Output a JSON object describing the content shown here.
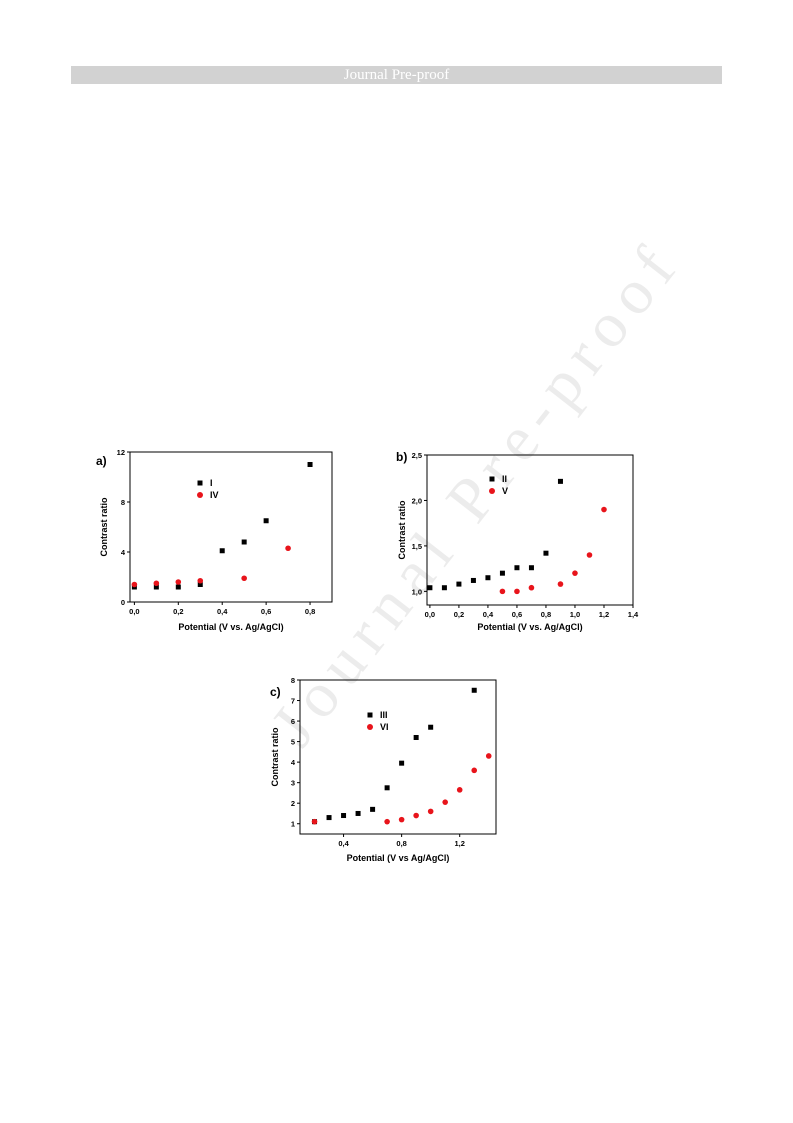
{
  "header": {
    "title": "Journal Pre-proof"
  },
  "watermark": {
    "text": "Journal Pre-proof"
  },
  "chart_data": [
    {
      "type": "scatter",
      "panel_label": "a)",
      "xlabel": "Potential (V vs. Ag/AgCl)",
      "ylabel": "Contrast ratio",
      "xlim": [
        -0.02,
        0.9
      ],
      "ylim": [
        0,
        12
      ],
      "xticks": [
        0.0,
        0.2,
        0.4,
        0.6,
        0.8
      ],
      "xtick_labels": [
        "0,0",
        "0,2",
        "0,4",
        "0,6",
        "0,8"
      ],
      "yticks": [
        0,
        4,
        8,
        12
      ],
      "ytick_labels": [
        "0",
        "4",
        "8",
        "12"
      ],
      "legend_position": "upper-center",
      "grid": false,
      "series": [
        {
          "name": "I",
          "marker": "square",
          "color": "#000000",
          "x": [
            0.0,
            0.1,
            0.2,
            0.3,
            0.4,
            0.5,
            0.6,
            0.8
          ],
          "y": [
            1.2,
            1.2,
            1.2,
            1.4,
            4.1,
            4.8,
            6.5,
            11.0
          ]
        },
        {
          "name": "IV",
          "marker": "circle",
          "color": "#e8141b",
          "x": [
            0.0,
            0.1,
            0.2,
            0.3,
            0.5,
            0.7
          ],
          "y": [
            1.4,
            1.5,
            1.6,
            1.7,
            1.9,
            4.3
          ]
        }
      ]
    },
    {
      "type": "scatter",
      "panel_label": "b)",
      "xlabel": "Potential (V vs. Ag/AgCl)",
      "ylabel": "Contrast ratio",
      "xlim": [
        -0.02,
        1.4
      ],
      "ylim": [
        0.85,
        2.5
      ],
      "xticks": [
        0.0,
        0.2,
        0.4,
        0.6,
        0.8,
        1.0,
        1.2,
        1.4
      ],
      "xtick_labels": [
        "0,0",
        "0,2",
        "0,4",
        "0,6",
        "0,8",
        "1,0",
        "1,2",
        "1,4"
      ],
      "yticks": [
        1.0,
        1.5,
        2.0,
        2.5
      ],
      "ytick_labels": [
        "1,0",
        "1,5",
        "2,0",
        "2,5"
      ],
      "legend_position": "upper-center",
      "grid": false,
      "series": [
        {
          "name": "II",
          "marker": "square",
          "color": "#000000",
          "x": [
            0.0,
            0.1,
            0.2,
            0.3,
            0.4,
            0.5,
            0.6,
            0.7,
            0.8,
            0.9
          ],
          "y": [
            1.04,
            1.04,
            1.08,
            1.12,
            1.15,
            1.2,
            1.26,
            1.26,
            1.42,
            2.21
          ]
        },
        {
          "name": "V",
          "marker": "circle",
          "color": "#e8141b",
          "x": [
            0.5,
            0.6,
            0.7,
            0.9,
            1.0,
            1.1,
            1.2
          ],
          "y": [
            1.0,
            1.0,
            1.04,
            1.08,
            1.2,
            1.4,
            1.9
          ]
        }
      ]
    },
    {
      "type": "scatter",
      "panel_label": "c)",
      "xlabel": "Potential (V vs Ag/AgCl)",
      "ylabel": "Contrast ratio",
      "xlim": [
        0.1,
        1.45
      ],
      "ylim": [
        0.5,
        8
      ],
      "xticks": [
        0.4,
        0.8,
        1.2
      ],
      "xtick_labels": [
        "0,4",
        "0,8",
        "1,2"
      ],
      "yticks": [
        1,
        2,
        3,
        4,
        5,
        6,
        7,
        8
      ],
      "ytick_labels": [
        "1",
        "2",
        "3",
        "4",
        "5",
        "6",
        "7",
        "8"
      ],
      "legend_position": "upper-center",
      "grid": false,
      "series": [
        {
          "name": "III",
          "marker": "square",
          "color": "#000000",
          "x": [
            0.2,
            0.3,
            0.4,
            0.5,
            0.6,
            0.7,
            0.8,
            0.9,
            1.0,
            1.3
          ],
          "y": [
            1.1,
            1.3,
            1.4,
            1.5,
            1.7,
            2.75,
            3.95,
            5.2,
            5.7,
            7.5
          ]
        },
        {
          "name": "VI",
          "marker": "circle",
          "color": "#e8141b",
          "x": [
            0.2,
            0.7,
            0.8,
            0.9,
            1.0,
            1.1,
            1.2,
            1.3,
            1.4
          ],
          "y": [
            1.1,
            1.1,
            1.2,
            1.4,
            1.6,
            2.05,
            2.65,
            3.6,
            4.3
          ]
        }
      ]
    }
  ]
}
